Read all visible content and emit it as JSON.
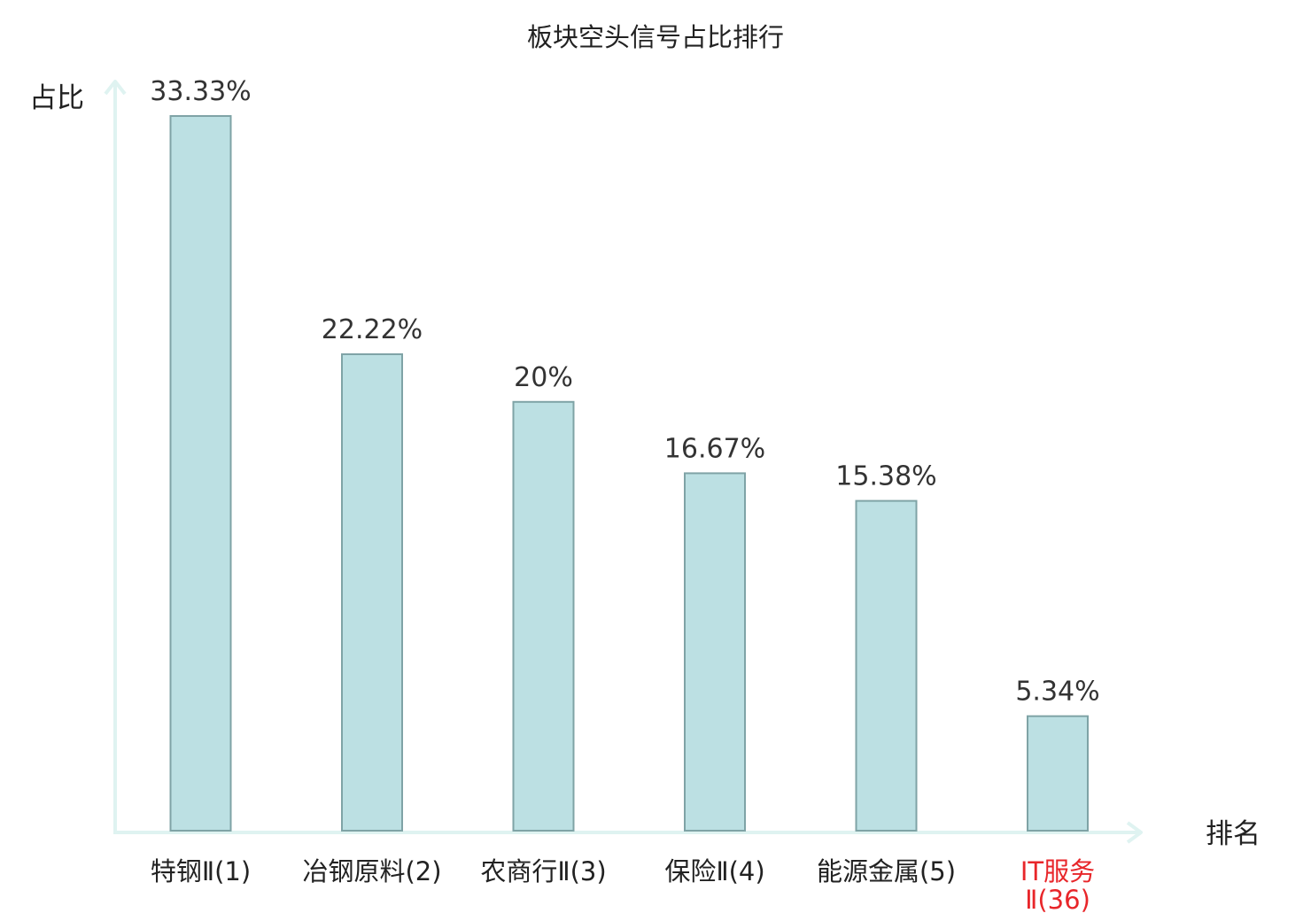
{
  "chart_data": {
    "type": "bar",
    "title": "板块空头信号占比排行",
    "ylabel": "占比",
    "xlabel": "排名",
    "categories": [
      [
        "特钢Ⅱ(1)"
      ],
      [
        "冶钢原料(2)"
      ],
      [
        "农商行Ⅱ(3)"
      ],
      [
        "保险Ⅱ(4)"
      ],
      [
        "能源金属(5)"
      ],
      [
        "IT服务",
        "Ⅱ(36)"
      ]
    ],
    "values": [
      33.33,
      22.22,
      20,
      16.67,
      15.38,
      5.34
    ],
    "value_labels": [
      "33.33%",
      "22.22%",
      "20%",
      "16.67%",
      "15.38%",
      "5.34%"
    ],
    "highlight_index": 5,
    "ylim": [
      0,
      35
    ],
    "grid": false,
    "legend": "none",
    "colors": {
      "bar_fill": "#bce0e3",
      "bar_stroke": "#7fa3a6",
      "axis": "#dff3f1",
      "text": "#222222",
      "value_text": "#333333",
      "highlight_text": "#e8262a"
    }
  }
}
